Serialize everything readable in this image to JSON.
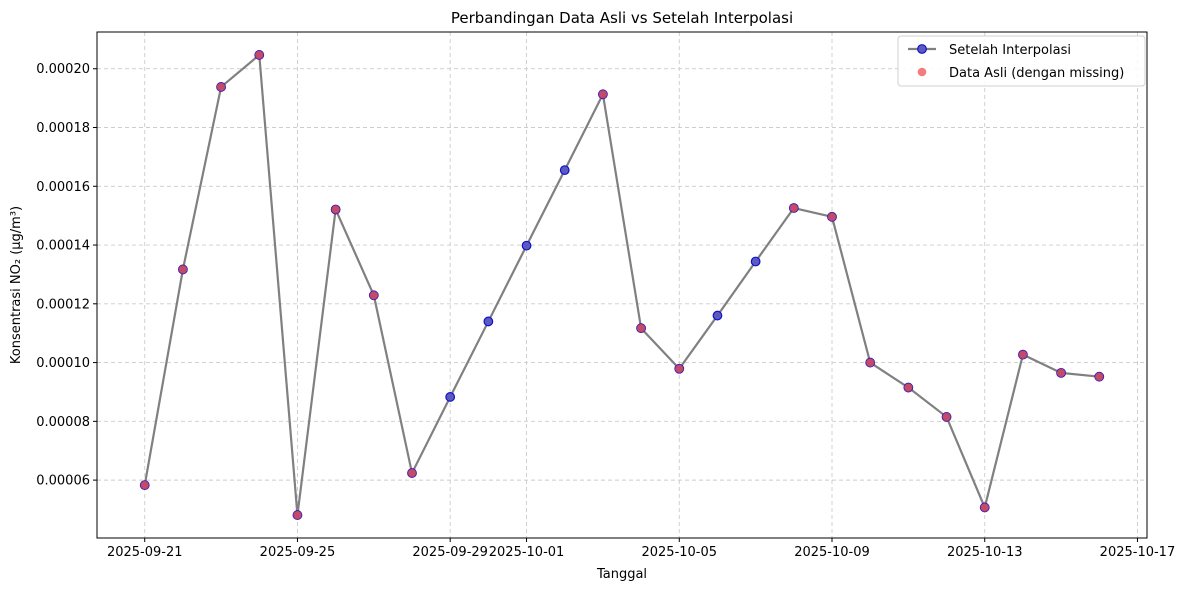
{
  "chart_data": {
    "type": "line",
    "title": "Perbandingan Data Asli vs Setelah Interpolasi",
    "xlabel": "Tanggal",
    "ylabel": "Konsentrasi NO₂ (µg/m³)",
    "xlim": [
      "2025-09-19.75",
      "2025-10-17.25"
    ],
    "ylim": [
      4.03e-05,
      0.0002125
    ],
    "x_ticks": [
      "2025-09-21",
      "2025-09-25",
      "2025-09-29",
      "2025-10-01",
      "2025-10-05",
      "2025-10-09",
      "2025-10-13",
      "2025-10-17"
    ],
    "y_ticks": [
      "0.00006",
      "0.00008",
      "0.00010",
      "0.00012",
      "0.00014",
      "0.00016",
      "0.00018",
      "0.00020"
    ],
    "grid": true,
    "legend_position": "top-right",
    "series": [
      {
        "name": "Setelah Interpolasi",
        "line_color": "#808080",
        "marker_face": "#5b5bbf",
        "marker_edge": "#1111cc",
        "points": [
          {
            "x": "2025-09-21",
            "y": 5.83e-05
          },
          {
            "x": "2025-09-22",
            "y": 0.0001317
          },
          {
            "x": "2025-09-23",
            "y": 0.0001938
          },
          {
            "x": "2025-09-24",
            "y": 0.0002047
          },
          {
            "x": "2025-09-25",
            "y": 4.81e-05
          },
          {
            "x": "2025-09-26",
            "y": 0.0001521
          },
          {
            "x": "2025-09-27",
            "y": 0.0001229
          },
          {
            "x": "2025-09-28",
            "y": 6.24e-05
          },
          {
            "x": "2025-09-29",
            "y": 8.83e-05
          },
          {
            "x": "2025-09-30",
            "y": 0.000114
          },
          {
            "x": "2025-10-01",
            "y": 0.0001398
          },
          {
            "x": "2025-10-02",
            "y": 0.0001655
          },
          {
            "x": "2025-10-03",
            "y": 0.0001913
          },
          {
            "x": "2025-10-04",
            "y": 0.0001117
          },
          {
            "x": "2025-10-05",
            "y": 9.79e-05
          },
          {
            "x": "2025-10-06",
            "y": 0.000116
          },
          {
            "x": "2025-10-07",
            "y": 0.0001344
          },
          {
            "x": "2025-10-08",
            "y": 0.0001526
          },
          {
            "x": "2025-10-09",
            "y": 0.0001496
          },
          {
            "x": "2025-10-10",
            "y": 0.0001
          },
          {
            "x": "2025-10-11",
            "y": 9.15e-05
          },
          {
            "x": "2025-10-12",
            "y": 8.15e-05
          },
          {
            "x": "2025-10-13",
            "y": 5.07e-05
          },
          {
            "x": "2025-10-14",
            "y": 0.0001027
          },
          {
            "x": "2025-10-15",
            "y": 9.65e-05
          },
          {
            "x": "2025-10-16",
            "y": 9.52e-05
          }
        ]
      },
      {
        "name": "Data Asli (dengan missing)",
        "marker_face": "#ee4444",
        "points": [
          {
            "x": "2025-09-21",
            "y": 5.83e-05
          },
          {
            "x": "2025-09-22",
            "y": 0.0001317
          },
          {
            "x": "2025-09-23",
            "y": 0.0001938
          },
          {
            "x": "2025-09-24",
            "y": 0.0002047
          },
          {
            "x": "2025-09-25",
            "y": 4.81e-05
          },
          {
            "x": "2025-09-26",
            "y": 0.0001521
          },
          {
            "x": "2025-09-27",
            "y": 0.0001229
          },
          {
            "x": "2025-09-28",
            "y": 6.24e-05
          },
          {
            "x": "2025-10-03",
            "y": 0.0001913
          },
          {
            "x": "2025-10-04",
            "y": 0.0001117
          },
          {
            "x": "2025-10-05",
            "y": 9.79e-05
          },
          {
            "x": "2025-10-08",
            "y": 0.0001526
          },
          {
            "x": "2025-10-09",
            "y": 0.0001496
          },
          {
            "x": "2025-10-10",
            "y": 0.0001
          },
          {
            "x": "2025-10-11",
            "y": 9.15e-05
          },
          {
            "x": "2025-10-12",
            "y": 8.15e-05
          },
          {
            "x": "2025-10-13",
            "y": 5.07e-05
          },
          {
            "x": "2025-10-14",
            "y": 0.0001027
          },
          {
            "x": "2025-10-15",
            "y": 9.65e-05
          },
          {
            "x": "2025-10-16",
            "y": 9.52e-05
          }
        ]
      }
    ]
  }
}
